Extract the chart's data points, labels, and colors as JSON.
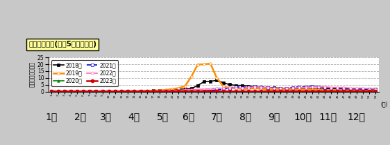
{
  "title": "週別発生動向(過去5年との比較)",
  "ylabel": "定点当たり報告数",
  "xlabel_weeks": "(週)",
  "ylim": [
    0,
    25
  ],
  "yticks": [
    0,
    5,
    10,
    15,
    20,
    25
  ],
  "num_weeks": 52,
  "months_positions": [
    1,
    5.5,
    9.5,
    14,
    18.5,
    22.5,
    27,
    31.5,
    36,
    40.5,
    44.5,
    49
  ],
  "months_labels": [
    "1月",
    "2月",
    "3月",
    "4月",
    "5月",
    "6月",
    "7月",
    "8月",
    "9月",
    "10月",
    "11月",
    "12月"
  ],
  "series": [
    {
      "label": "2018年",
      "color": "#000000",
      "marker": "s",
      "marker_face": "#000000",
      "linestyle": "-",
      "linewidth": 1.2,
      "markersize": 2.5,
      "data": [
        0.3,
        0.3,
        0.3,
        0.3,
        0.3,
        0.3,
        0.3,
        0.3,
        0.3,
        0.3,
        0.3,
        0.3,
        0.4,
        0.4,
        0.4,
        0.5,
        0.6,
        0.7,
        0.9,
        1.3,
        1.6,
        1.9,
        2.1,
        4.5,
        7.2,
        7.5,
        8.2,
        6.5,
        5.1,
        4.5,
        4.5,
        4.0,
        3.5,
        3.0,
        3.0,
        2.8,
        2.5,
        2.0,
        2.0,
        2.0,
        2.0,
        2.0,
        2.0,
        2.0,
        2.0,
        2.0,
        2.0,
        2.0,
        2.0,
        2.0,
        2.0,
        2.0
      ]
    },
    {
      "label": "2019年",
      "color": "#ff8c00",
      "marker": "o",
      "marker_face": "#ffffff",
      "linestyle": "-",
      "linewidth": 1.8,
      "markersize": 2.5,
      "data": [
        0.3,
        0.2,
        0.2,
        0.2,
        0.2,
        0.2,
        0.2,
        0.2,
        0.2,
        0.2,
        0.2,
        0.2,
        0.3,
        0.3,
        0.4,
        0.5,
        0.7,
        0.9,
        1.2,
        1.8,
        2.5,
        4.0,
        11.0,
        19.8,
        20.0,
        20.5,
        10.0,
        4.0,
        2.5,
        2.5,
        2.0,
        2.0,
        2.5,
        2.0,
        1.5,
        1.5,
        1.5,
        1.5,
        1.5,
        1.5,
        1.5,
        1.5,
        1.5,
        1.2,
        1.2,
        1.2,
        1.2,
        1.0,
        1.0,
        1.0,
        0.8,
        0.8
      ]
    },
    {
      "label": "2020年",
      "color": "#008000",
      "marker": "^",
      "marker_face": "#008000",
      "linestyle": "-",
      "linewidth": 1.2,
      "markersize": 2.5,
      "data": [
        0.2,
        0.2,
        0.2,
        0.2,
        0.2,
        0.2,
        0.1,
        0.1,
        0.1,
        0.1,
        0.1,
        0.1,
        0.1,
        0.1,
        0.1,
        0.1,
        0.1,
        0.1,
        0.1,
        0.1,
        0.1,
        0.1,
        0.1,
        0.1,
        0.1,
        0.1,
        0.1,
        0.1,
        0.1,
        0.1,
        0.1,
        0.1,
        0.1,
        0.1,
        0.1,
        0.1,
        0.1,
        0.1,
        0.1,
        0.1,
        0.1,
        0.1,
        0.1,
        0.1,
        0.1,
        0.1,
        0.1,
        0.1,
        0.1,
        0.1,
        0.1,
        0.1
      ]
    },
    {
      "label": "2021年",
      "color": "#0000cc",
      "marker": "s",
      "marker_face": "#ffffff",
      "linestyle": "--",
      "linewidth": 1.2,
      "markersize": 2.5,
      "data": [
        0.1,
        0.1,
        0.1,
        0.1,
        0.1,
        0.1,
        0.1,
        0.1,
        0.1,
        0.1,
        0.1,
        0.1,
        0.1,
        0.1,
        0.1,
        0.1,
        0.1,
        0.1,
        0.1,
        0.1,
        0.1,
        0.2,
        0.2,
        0.3,
        0.5,
        0.8,
        1.2,
        1.8,
        2.5,
        3.5,
        3.0,
        3.5,
        4.0,
        3.5,
        3.0,
        2.5,
        2.5,
        2.5,
        3.0,
        3.5,
        3.5,
        4.0,
        3.5,
        3.0,
        2.5,
        2.5,
        2.0,
        2.0,
        2.0,
        1.8,
        1.5,
        1.5
      ]
    },
    {
      "label": "2022年",
      "color": "#ff69b4",
      "marker": "o",
      "marker_face": "#ffffff",
      "linestyle": "-",
      "linewidth": 1.2,
      "markersize": 2.5,
      "data": [
        0.2,
        0.2,
        0.2,
        0.2,
        0.2,
        0.2,
        0.2,
        0.2,
        0.2,
        0.2,
        0.2,
        0.2,
        0.2,
        0.3,
        0.3,
        0.4,
        0.5,
        0.6,
        0.8,
        0.8,
        1.0,
        1.2,
        1.5,
        1.5,
        1.8,
        2.0,
        2.5,
        2.5,
        3.0,
        2.5,
        2.5,
        3.0,
        3.5,
        3.0,
        3.0,
        2.5,
        2.5,
        2.5,
        2.5,
        3.0,
        3.0,
        3.5,
        3.5,
        3.5,
        3.0,
        3.0,
        3.0,
        2.5,
        2.5,
        2.5,
        2.0,
        2.0
      ]
    },
    {
      "label": "2023年",
      "color": "#cc0000",
      "marker": "o",
      "marker_face": "#cc0000",
      "linestyle": "-",
      "linewidth": 1.8,
      "markersize": 3.5,
      "data": [
        0.5,
        0.5,
        0.5,
        0.5,
        0.5,
        0.5,
        0.5,
        0.5,
        0.5,
        0.5,
        0.5,
        0.5,
        0.5,
        0.5,
        0.5,
        0.5,
        0.5,
        0.5,
        0.5,
        0.5,
        0.5,
        0.5,
        0.5,
        0.5,
        0.5,
        0.5,
        0.5,
        0.5,
        0.5,
        0.5,
        0.5,
        0.5,
        0.5,
        0.5,
        0.5,
        0.5,
        0.5,
        0.5,
        0.5,
        0.5,
        0.5,
        0.5,
        0.5,
        0.5,
        0.5,
        0.5,
        0.5,
        0.5,
        0.5,
        0.5,
        0.5,
        0.5
      ]
    }
  ],
  "bg_color": "#c8c8c8",
  "plot_bg_color": "#ffffff",
  "grid_color": "#aaaaaa",
  "title_bg_color": "#ffff99",
  "title_border_color": "#000000",
  "legend_border_color": "#000000"
}
